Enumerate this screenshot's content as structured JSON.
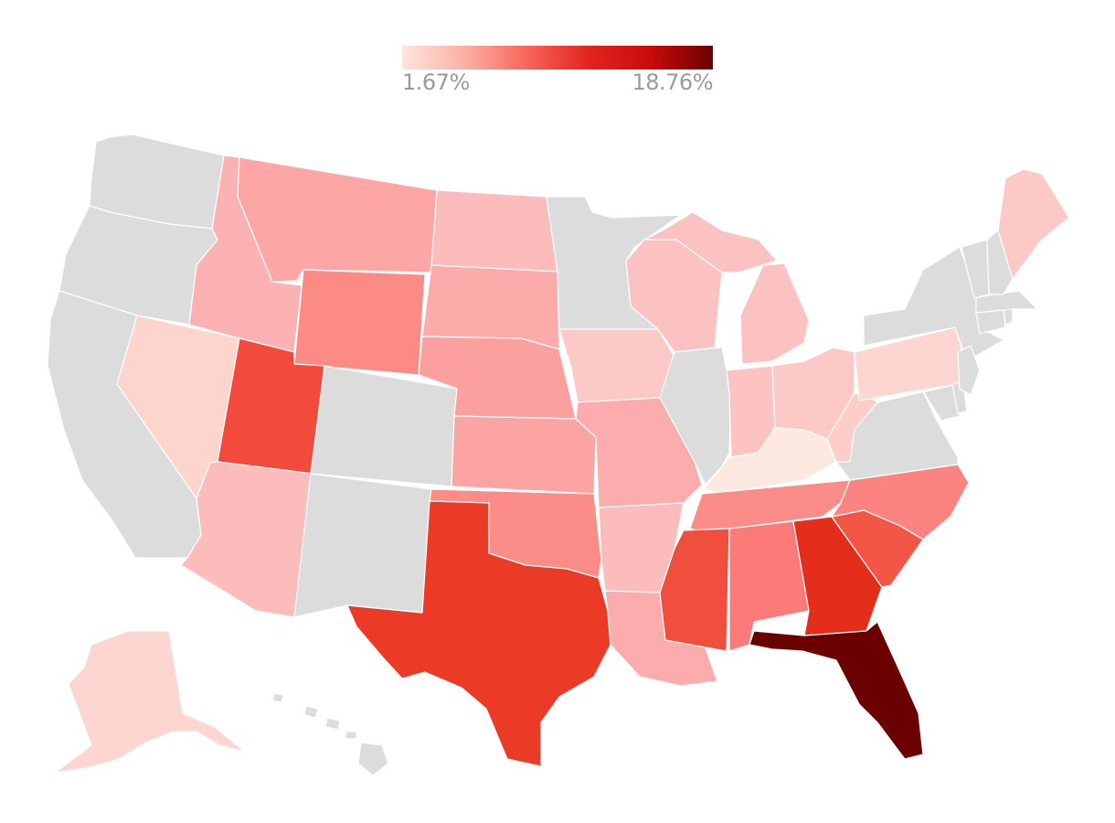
{
  "legend": {
    "min_label": "1.67%",
    "max_label": "18.76%",
    "min_value": 1.67,
    "max_value": 18.76,
    "gradient_colors": [
      "#fee5dd",
      "#fcb0a6",
      "#f7675a",
      "#e3241d",
      "#c90b0b",
      "#6b0000"
    ]
  },
  "colors": {
    "no_data": "#dcdcdc",
    "state_border": "#ffffff"
  },
  "states": [
    {
      "name": "WA",
      "fill": "#dcdcdc"
    },
    {
      "name": "OR",
      "fill": "#dcdcdc"
    },
    {
      "name": "CA",
      "fill": "#dcdcdc"
    },
    {
      "name": "NV",
      "fill": "#fdd5cc"
    },
    {
      "name": "ID",
      "fill": "#fcb2b2"
    },
    {
      "name": "MT",
      "fill": "#fca6a6"
    },
    {
      "name": "WY",
      "fill": "#fc8a85"
    },
    {
      "name": "UT",
      "fill": "#f24a3b"
    },
    {
      "name": "CO",
      "fill": "#dcdcdc"
    },
    {
      "name": "AZ",
      "fill": "#fcbcbc"
    },
    {
      "name": "NM",
      "fill": "#dcdcdc"
    },
    {
      "name": "ND",
      "fill": "#fdbcbc"
    },
    {
      "name": "SD",
      "fill": "#fcaaaa"
    },
    {
      "name": "NE",
      "fill": "#fc9f9f"
    },
    {
      "name": "KS",
      "fill": "#fca3a3"
    },
    {
      "name": "OK",
      "fill": "#fc8c88"
    },
    {
      "name": "TX",
      "fill": "#eb3b26"
    },
    {
      "name": "MN",
      "fill": "#dcdcdc"
    },
    {
      "name": "IA",
      "fill": "#fdc9c7"
    },
    {
      "name": "MO",
      "fill": "#fcacac"
    },
    {
      "name": "AR",
      "fill": "#fcbcbc"
    },
    {
      "name": "LA",
      "fill": "#fcacac"
    },
    {
      "name": "WI",
      "fill": "#fcc2c2"
    },
    {
      "name": "IL",
      "fill": "#dcdcdc"
    },
    {
      "name": "MI",
      "fill": "#fcc2c2"
    },
    {
      "name": "IN",
      "fill": "#fdc2c2"
    },
    {
      "name": "OH",
      "fill": "#fdc9c7"
    },
    {
      "name": "KY",
      "fill": "#fde9e0"
    },
    {
      "name": "TN",
      "fill": "#fc8c88"
    },
    {
      "name": "MS",
      "fill": "#f04f3d"
    },
    {
      "name": "AL",
      "fill": "#fc7a78"
    },
    {
      "name": "GA",
      "fill": "#e52d1c"
    },
    {
      "name": "FL",
      "fill": "#6b0000"
    },
    {
      "name": "SC",
      "fill": "#f35547"
    },
    {
      "name": "NC",
      "fill": "#fc8480"
    },
    {
      "name": "VA",
      "fill": "#dcdcdc"
    },
    {
      "name": "WV",
      "fill": "#fdcdc9"
    },
    {
      "name": "PA",
      "fill": "#fdd5d1"
    },
    {
      "name": "NY",
      "fill": "#dcdcdc"
    },
    {
      "name": "MD",
      "fill": "#dcdcdc"
    },
    {
      "name": "DE",
      "fill": "#dcdcdc"
    },
    {
      "name": "NJ",
      "fill": "#dcdcdc"
    },
    {
      "name": "CT",
      "fill": "#dcdcdc"
    },
    {
      "name": "RI",
      "fill": "#dcdcdc"
    },
    {
      "name": "MA",
      "fill": "#dcdcdc"
    },
    {
      "name": "VT",
      "fill": "#dcdcdc"
    },
    {
      "name": "NH",
      "fill": "#dcdcdc"
    },
    {
      "name": "ME",
      "fill": "#fdc9c7"
    },
    {
      "name": "AK",
      "fill": "#fdd5d1"
    },
    {
      "name": "HI",
      "fill": "#dcdcdc"
    }
  ]
}
